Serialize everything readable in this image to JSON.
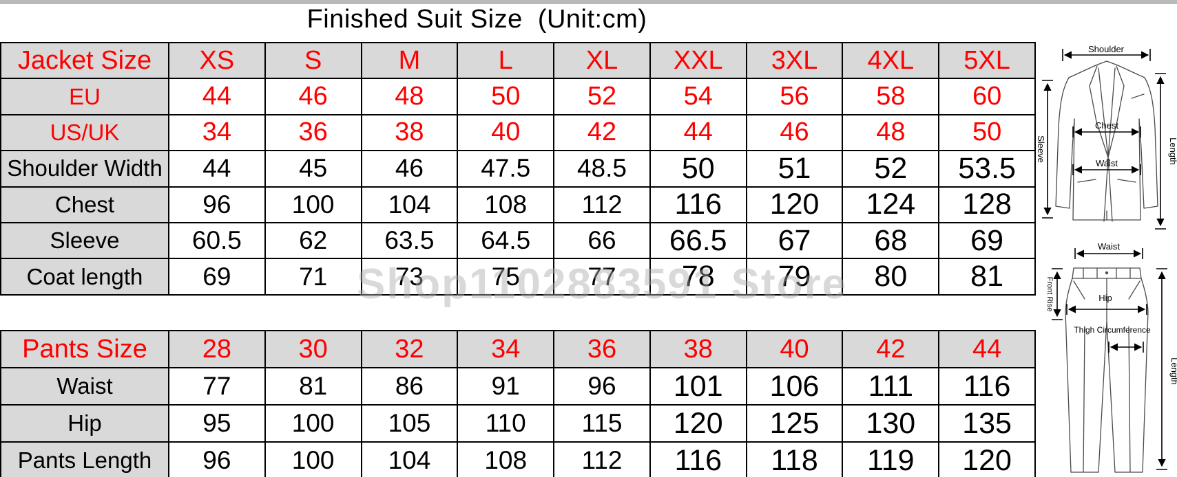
{
  "title": "Finished Suit Size  (Unit:cm)",
  "watermark": "Shop1102883591 Store",
  "colors": {
    "red_text": "#fe0000",
    "header_cell_bg": "#d9d9d9",
    "table_border": "#000000",
    "watermark_gray": "#aaaaaa",
    "top_strip_gray": "#b9b9b9"
  },
  "chart_data": [
    {
      "type": "table",
      "name": "jacket-size-table",
      "columns": [
        "Jacket Size",
        "XS",
        "S",
        "M",
        "L",
        "XL",
        "XXL",
        "3XL",
        "4XL",
        "5XL"
      ],
      "rows": [
        [
          "EU",
          "44",
          "46",
          "48",
          "50",
          "52",
          "54",
          "56",
          "58",
          "60"
        ],
        [
          "US/UK",
          "34",
          "36",
          "38",
          "40",
          "42",
          "44",
          "46",
          "48",
          "50"
        ],
        [
          "Shoulder Width",
          "44",
          "45",
          "46",
          "47.5",
          "48.5",
          "50",
          "51",
          "52",
          "53.5"
        ],
        [
          "Chest",
          "96",
          "100",
          "104",
          "108",
          "112",
          "116",
          "120",
          "124",
          "128"
        ],
        [
          "Sleeve",
          "60.5",
          "62",
          "63.5",
          "64.5",
          "66",
          "66.5",
          "67",
          "68",
          "69"
        ],
        [
          "Coat length",
          "69",
          "71",
          "73",
          "75",
          "77",
          "78",
          "79",
          "80",
          "81"
        ]
      ],
      "red_rows": [
        0,
        1
      ]
    },
    {
      "type": "table",
      "name": "pants-size-table",
      "columns": [
        "Pants Size",
        "28",
        "30",
        "32",
        "34",
        "36",
        "38",
        "40",
        "42",
        "44"
      ],
      "rows": [
        [
          "Waist",
          "77",
          "81",
          "86",
          "91",
          "96",
          "101",
          "106",
          "111",
          "116"
        ],
        [
          "Hip",
          "95",
          "100",
          "105",
          "110",
          "115",
          "120",
          "125",
          "130",
          "135"
        ],
        [
          "Pants Length",
          "96",
          "100",
          "104",
          "108",
          "112",
          "116",
          "118",
          "119",
          "120"
        ]
      ],
      "red_rows": []
    }
  ],
  "diagrams": {
    "jacket": {
      "shoulder": "Shoulder",
      "sleeve": "Sleeve",
      "chest": "Chest",
      "waist": "Waist",
      "length": "Length"
    },
    "pants": {
      "waist": "Waist",
      "front_rise": "Front Rise",
      "hip": "Hip",
      "thigh": "Thigh Circumference",
      "length": "Length"
    }
  }
}
